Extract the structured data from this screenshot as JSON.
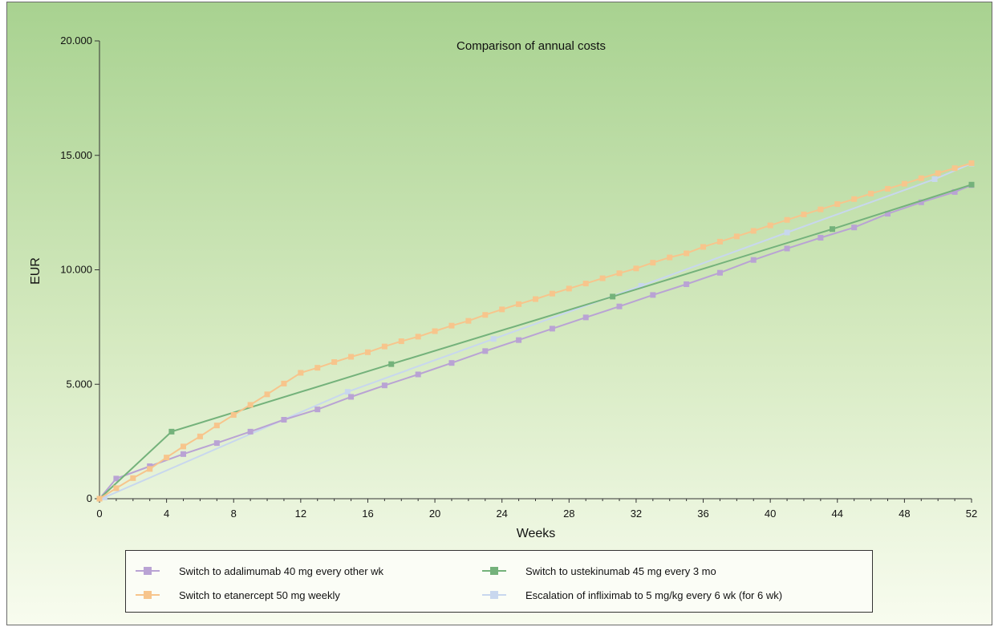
{
  "chart_data": {
    "type": "line",
    "title": "Comparison of annual costs",
    "xlabel": "Weeks",
    "ylabel": "EUR",
    "xlim": [
      0,
      52
    ],
    "ylim": [
      0,
      20000
    ],
    "x_ticks": [
      0,
      4,
      8,
      12,
      16,
      20,
      24,
      28,
      32,
      36,
      40,
      44,
      48,
      52
    ],
    "x_tick_labels": [
      "0",
      "4",
      "8",
      "12",
      "16",
      "20",
      "24",
      "28",
      "32",
      "36",
      "40",
      "44",
      "48",
      "52"
    ],
    "y_ticks": [
      0,
      5000,
      10000,
      15000,
      20000
    ],
    "y_tick_labels": [
      "0",
      "5.000",
      "10.000",
      "15.000",
      "20.000"
    ],
    "grid": false,
    "legend_position": "bottom",
    "series": [
      {
        "name": "Switch to adalimumab 40 mg every other wk",
        "color": "#b9a3d4",
        "points": [
          [
            0,
            0
          ],
          [
            1,
            880
          ],
          [
            3,
            1420
          ],
          [
            5,
            1950
          ],
          [
            7,
            2430
          ],
          [
            9,
            2930
          ],
          [
            11,
            3450
          ],
          [
            13,
            3900
          ],
          [
            15,
            4450
          ],
          [
            17,
            4950
          ],
          [
            19,
            5430
          ],
          [
            21,
            5930
          ],
          [
            23,
            6450
          ],
          [
            25,
            6930
          ],
          [
            27,
            7430
          ],
          [
            29,
            7920
          ],
          [
            31,
            8400
          ],
          [
            33,
            8900
          ],
          [
            35,
            9370
          ],
          [
            37,
            9870
          ],
          [
            39,
            10430
          ],
          [
            41,
            10930
          ],
          [
            43,
            11400
          ],
          [
            45,
            11850
          ],
          [
            47,
            12450
          ],
          [
            49,
            12950
          ],
          [
            51,
            13400
          ],
          [
            52,
            13700
          ]
        ]
      },
      {
        "name": "Switch to etanercept 50 mg weekly",
        "color": "#f7c58c",
        "points": [
          [
            0,
            0
          ],
          [
            1,
            460
          ],
          [
            2,
            900
          ],
          [
            3,
            1300
          ],
          [
            4,
            1800
          ],
          [
            5,
            2280
          ],
          [
            6,
            2720
          ],
          [
            7,
            3200
          ],
          [
            8,
            3660
          ],
          [
            9,
            4100
          ],
          [
            10,
            4560
          ],
          [
            11,
            5030
          ],
          [
            12,
            5500
          ],
          [
            13,
            5720
          ],
          [
            14,
            5970
          ],
          [
            15,
            6200
          ],
          [
            16,
            6400
          ],
          [
            17,
            6650
          ],
          [
            18,
            6880
          ],
          [
            19,
            7080
          ],
          [
            20,
            7320
          ],
          [
            21,
            7560
          ],
          [
            22,
            7770
          ],
          [
            23,
            8030
          ],
          [
            24,
            8270
          ],
          [
            25,
            8500
          ],
          [
            26,
            8720
          ],
          [
            27,
            8960
          ],
          [
            28,
            9180
          ],
          [
            29,
            9400
          ],
          [
            30,
            9630
          ],
          [
            31,
            9850
          ],
          [
            32,
            10060
          ],
          [
            33,
            10310
          ],
          [
            34,
            10540
          ],
          [
            35,
            10720
          ],
          [
            36,
            11000
          ],
          [
            37,
            11230
          ],
          [
            38,
            11460
          ],
          [
            39,
            11700
          ],
          [
            40,
            11940
          ],
          [
            41,
            12180
          ],
          [
            42,
            12420
          ],
          [
            43,
            12640
          ],
          [
            44,
            12870
          ],
          [
            45,
            13090
          ],
          [
            46,
            13330
          ],
          [
            47,
            13540
          ],
          [
            48,
            13760
          ],
          [
            49,
            14000
          ],
          [
            50,
            14220
          ],
          [
            51,
            14440
          ],
          [
            52,
            14660
          ]
        ]
      },
      {
        "name": "Switch to ustekinumab 45 mg every 3 mo",
        "color": "#74b27b",
        "points": [
          [
            0,
            0
          ],
          [
            4.3,
            2930
          ],
          [
            17.4,
            5880
          ],
          [
            30.6,
            8830
          ],
          [
            43.7,
            11780
          ],
          [
            52,
            13720
          ]
        ]
      },
      {
        "name": "Escalation of infliximab to 5 mg/kg every 6 wk (for 6 wk)",
        "color": "#c8d7ee",
        "points": [
          [
            0,
            0
          ],
          [
            0.3,
            60
          ],
          [
            14.8,
            4670
          ],
          [
            23.5,
            6980
          ],
          [
            32.3,
            9300
          ],
          [
            41,
            11630
          ],
          [
            49.8,
            13960
          ],
          [
            52,
            14640
          ]
        ]
      }
    ]
  }
}
